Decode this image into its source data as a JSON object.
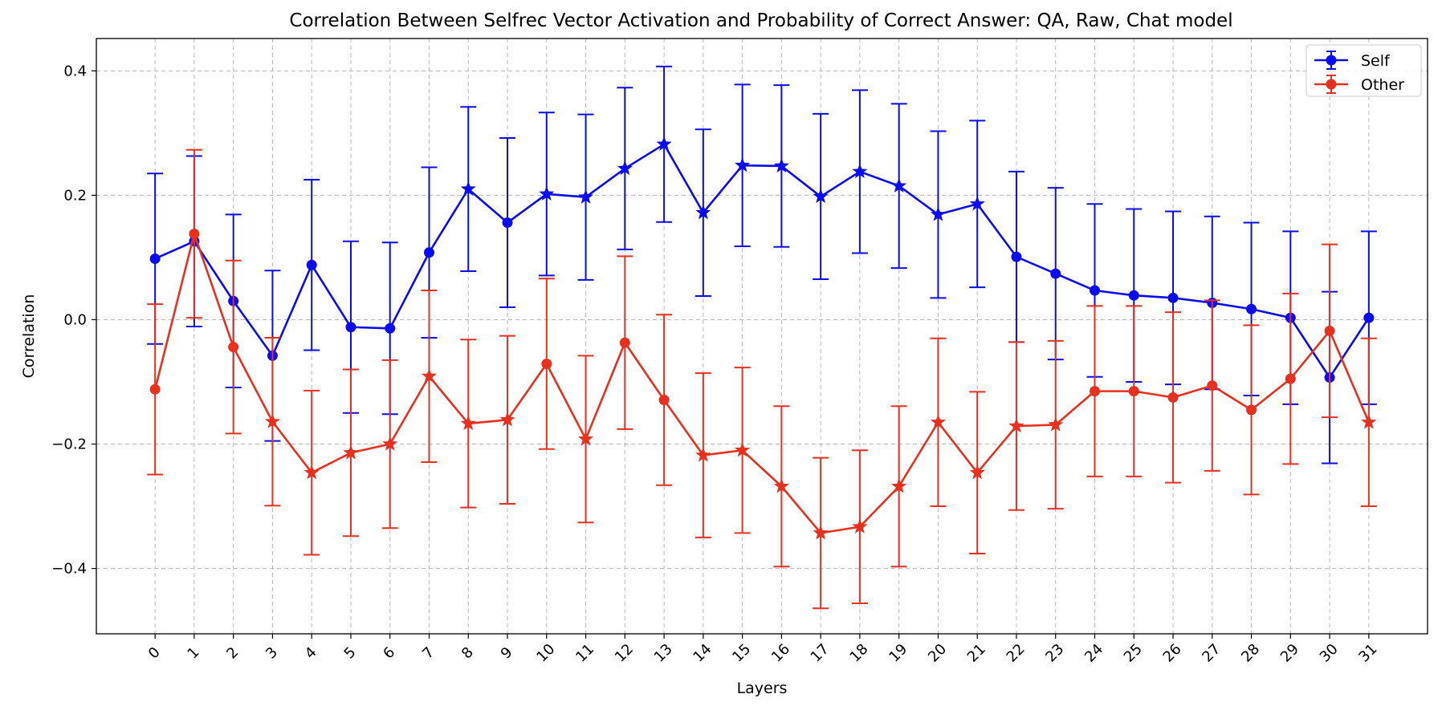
{
  "chart_data": {
    "type": "line",
    "title": "Correlation Between Selfrec Vector Activation and Probability of Correct Answer: QA, Raw, Chat model",
    "xlabel": "Layers",
    "ylabel": "Correlation",
    "x": [
      0,
      1,
      2,
      3,
      4,
      5,
      6,
      7,
      8,
      9,
      10,
      11,
      12,
      13,
      14,
      15,
      16,
      17,
      18,
      19,
      20,
      21,
      22,
      23,
      24,
      25,
      26,
      27,
      28,
      29,
      30,
      31
    ],
    "x_tick_labels": [
      "0",
      "1",
      "2",
      "3",
      "4",
      "5",
      "6",
      "7",
      "8",
      "9",
      "10",
      "11",
      "12",
      "13",
      "14",
      "15",
      "16",
      "17",
      "18",
      "19",
      "20",
      "21",
      "22",
      "23",
      "24",
      "25",
      "26",
      "27",
      "28",
      "29",
      "30",
      "31"
    ],
    "xlim": [
      -1.5,
      32.5
    ],
    "ylim": [
      -0.505,
      0.452
    ],
    "y_ticks": [
      0.4,
      0.2,
      0.0,
      -0.2,
      -0.4
    ],
    "y_tick_labels": [
      "0.4",
      "0.2",
      "0.0",
      "−0.2",
      "−0.4"
    ],
    "grid": true,
    "legend_position": "top-right",
    "series": [
      {
        "name": "Self",
        "color": "#0b0bf0",
        "values": [
          0.098,
          0.126,
          0.03,
          -0.058,
          0.088,
          -0.012,
          -0.014,
          0.108,
          0.21,
          0.156,
          0.202,
          0.197,
          0.243,
          0.282,
          0.172,
          0.248,
          0.247,
          0.198,
          0.238,
          0.215,
          0.169,
          0.186,
          0.101,
          0.074,
          0.047,
          0.039,
          0.035,
          0.027,
          0.017,
          0.003,
          -0.093,
          0.003
        ],
        "errors": [
          0.137,
          0.137,
          0.139,
          0.137,
          0.137,
          0.138,
          0.138,
          0.137,
          0.132,
          0.136,
          0.131,
          0.133,
          0.13,
          0.125,
          0.134,
          0.13,
          0.13,
          0.133,
          0.131,
          0.132,
          0.134,
          0.134,
          0.137,
          0.138,
          0.139,
          0.139,
          0.139,
          0.139,
          0.139,
          0.139,
          0.138,
          0.139
        ],
        "markers": [
          "circle",
          "circle",
          "circle",
          "circle",
          "circle",
          "circle",
          "circle",
          "circle",
          "star",
          "circle",
          "star",
          "star",
          "star",
          "star",
          "star",
          "star",
          "star",
          "star",
          "star",
          "star",
          "star",
          "star",
          "circle",
          "circle",
          "circle",
          "circle",
          "circle",
          "circle",
          "circle",
          "circle",
          "circle",
          "circle"
        ]
      },
      {
        "name": "Other",
        "color": "#e8301e",
        "values": [
          -0.112,
          0.138,
          -0.044,
          -0.164,
          -0.246,
          -0.214,
          -0.2,
          -0.091,
          -0.167,
          -0.161,
          -0.071,
          -0.192,
          -0.037,
          -0.129,
          -0.218,
          -0.21,
          -0.268,
          -0.343,
          -0.333,
          -0.268,
          -0.165,
          -0.246,
          -0.171,
          -0.169,
          -0.115,
          -0.115,
          -0.125,
          -0.106,
          -0.145,
          -0.095,
          -0.018,
          -0.165
        ],
        "errors": [
          0.137,
          0.135,
          0.139,
          0.135,
          0.132,
          0.134,
          0.135,
          0.138,
          0.135,
          0.135,
          0.137,
          0.134,
          0.139,
          0.137,
          0.132,
          0.133,
          0.129,
          0.121,
          0.123,
          0.129,
          0.135,
          0.13,
          0.135,
          0.135,
          0.137,
          0.137,
          0.137,
          0.137,
          0.136,
          0.137,
          0.139,
          0.135
        ],
        "markers": [
          "circle",
          "circle",
          "circle",
          "star",
          "star",
          "star",
          "star",
          "star",
          "star",
          "star",
          "circle",
          "star",
          "circle",
          "circle",
          "star",
          "star",
          "star",
          "star",
          "star",
          "star",
          "star",
          "star",
          "star",
          "star",
          "circle",
          "circle",
          "circle",
          "circle",
          "circle",
          "circle",
          "circle",
          "star"
        ]
      }
    ]
  }
}
